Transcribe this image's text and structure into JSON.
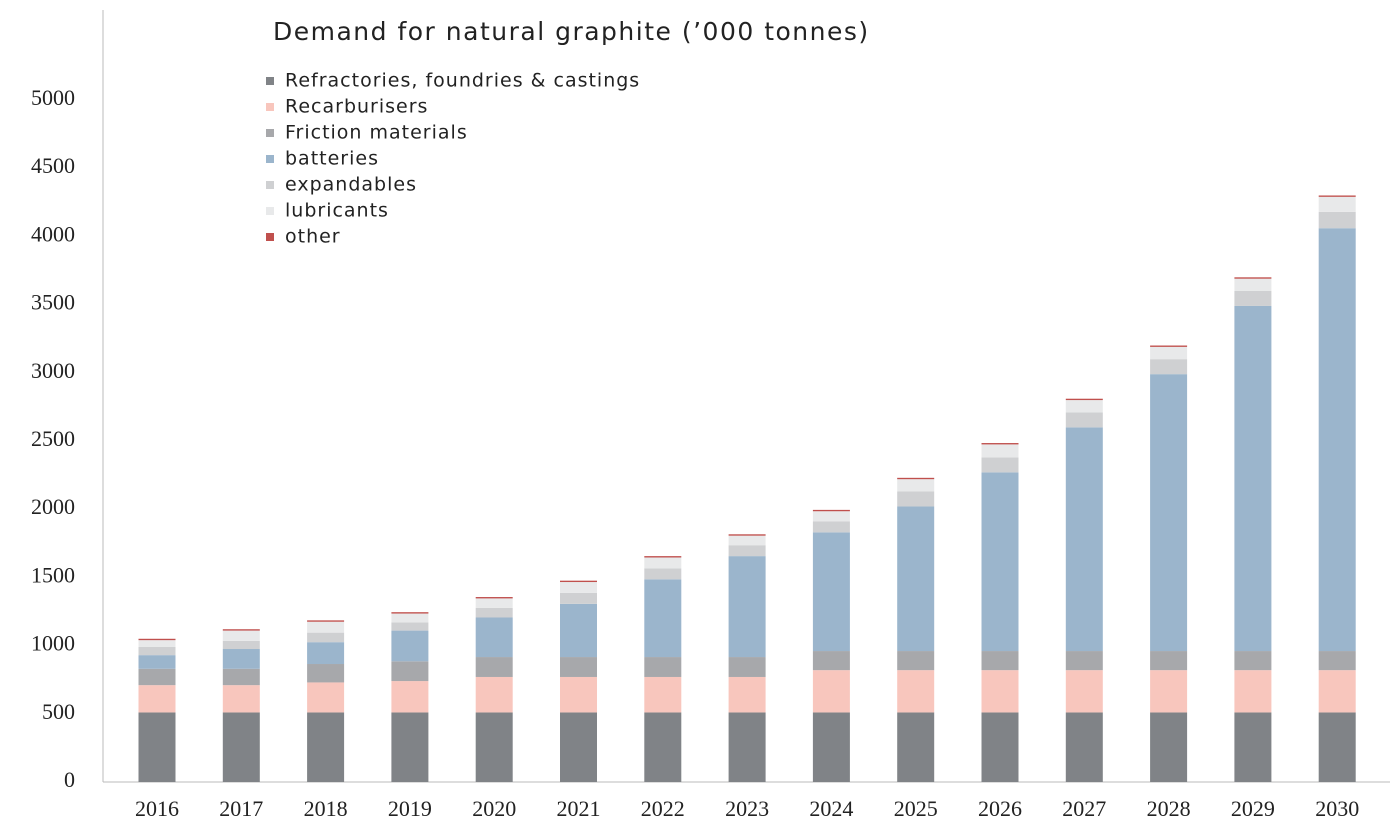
{
  "chart_data": {
    "type": "stacked_bar",
    "title": "Demand for natural graphite (’000 tonnes)",
    "categories": [
      "2016",
      "2017",
      "2018",
      "2019",
      "2020",
      "2021",
      "2022",
      "2023",
      "2024",
      "2025",
      "2026",
      "2027",
      "2028",
      "2029",
      "2030"
    ],
    "series": [
      {
        "name": "Refractories, foundries & castings",
        "color": "#808387",
        "values": [
          510,
          510,
          510,
          510,
          510,
          510,
          510,
          510,
          510,
          510,
          510,
          510,
          510,
          510,
          510
        ]
      },
      {
        "name": "Recarburisers",
        "color": "#f8c6bd",
        "values": [
          200,
          200,
          220,
          230,
          260,
          260,
          260,
          260,
          310,
          310,
          310,
          310,
          310,
          310,
          310
        ]
      },
      {
        "name": "Friction materials",
        "color": "#a7a8ab",
        "values": [
          120,
          120,
          135,
          145,
          146,
          146,
          146,
          146,
          140,
          140,
          140,
          140,
          140,
          140,
          140
        ]
      },
      {
        "name": "batteries",
        "color": "#9bb5cc",
        "values": [
          100,
          145,
          160,
          225,
          290,
          390,
          570,
          740,
          870,
          1060,
          1310,
          1640,
          2030,
          2530,
          3100
        ]
      },
      {
        "name": "expandables",
        "color": "#cfd0d2",
        "values": [
          60,
          60,
          70,
          60,
          70,
          80,
          80,
          80,
          80,
          110,
          110,
          110,
          110,
          110,
          120
        ]
      },
      {
        "name": "lubricants",
        "color": "#e8e9ea",
        "values": [
          50,
          75,
          80,
          65,
          70,
          80,
          80,
          70,
          75,
          90,
          95,
          90,
          90,
          90,
          110
        ]
      },
      {
        "name": "other",
        "color": "#c0504d",
        "values": [
          10,
          10,
          10,
          10,
          10,
          10,
          10,
          10,
          10,
          10,
          10,
          10,
          10,
          10,
          10
        ]
      }
    ],
    "ylim": [
      0,
      5000
    ],
    "yticks": [
      0,
      500,
      1000,
      1500,
      2000,
      2500,
      3000,
      3500,
      4000,
      4500,
      5000
    ],
    "grid": false
  }
}
